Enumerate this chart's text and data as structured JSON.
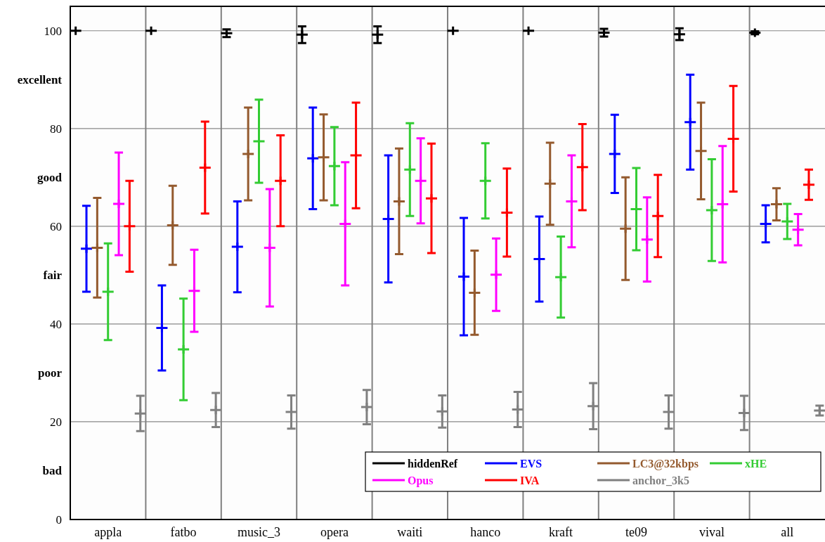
{
  "chart_data": {
    "type": "scatter",
    "categories": [
      null,
      null,
      null,
      "appla",
      null,
      null,
      null,
      null,
      null,
      null,
      "fatbo",
      null,
      null,
      null,
      null,
      null,
      null,
      "music_3",
      null,
      null,
      null,
      null,
      null,
      null,
      "opera",
      null,
      null,
      null,
      null,
      null,
      null,
      "waiti",
      null,
      null,
      null,
      null,
      null,
      null,
      "hanco",
      null,
      null,
      null,
      null,
      null,
      null,
      "kraft",
      null,
      null,
      null,
      null,
      null,
      null,
      "te09",
      null,
      null,
      null,
      null,
      null,
      null,
      "vival",
      null,
      null,
      null,
      null,
      null,
      null,
      "all",
      null,
      null,
      null
    ],
    "ylim": [
      0,
      105
    ],
    "yticks": [
      0,
      {
        "value": 10,
        "label": "bad"
      },
      20,
      {
        "value": 30,
        "label": "poor"
      },
      40,
      {
        "value": 50,
        "label": "fair"
      },
      60,
      {
        "value": 70,
        "label": "good"
      },
      80,
      {
        "value": 90,
        "label": "excellent"
      },
      100
    ],
    "grid": true,
    "legend": "bottom right",
    "marker": "cross",
    "series": [
      {
        "name": "hiddenRef",
        "color": "#000000",
        "values": [
          100,
          null,
          null,
          null,
          null,
          null,
          null,
          100,
          null,
          null,
          null,
          null,
          null,
          null,
          99.5,
          null,
          null,
          null,
          null,
          null,
          null,
          99.2,
          null,
          null,
          null,
          null,
          null,
          null,
          99.2,
          null,
          null,
          null,
          null,
          null,
          null,
          100,
          null,
          null,
          null,
          null,
          null,
          null,
          100,
          null,
          null,
          null,
          null,
          null,
          null,
          99.6,
          null,
          null,
          null,
          null,
          null,
          null,
          99.3,
          null,
          null,
          null,
          null,
          null,
          null,
          99.6,
          null,
          null,
          null,
          null,
          null,
          null
        ],
        "errors": [
          0,
          null,
          null,
          null,
          null,
          null,
          null,
          0,
          null,
          null,
          null,
          null,
          null,
          null,
          0.8,
          null,
          null,
          null,
          null,
          null,
          null,
          1.7,
          null,
          null,
          null,
          null,
          null,
          null,
          1.7,
          null,
          null,
          null,
          null,
          null,
          null,
          0,
          null,
          null,
          null,
          null,
          null,
          null,
          0,
          null,
          null,
          null,
          null,
          null,
          null,
          0.8,
          null,
          null,
          null,
          null,
          null,
          null,
          1.2,
          null,
          null,
          null,
          null,
          null,
          null,
          0.3,
          null,
          null,
          null,
          null,
          null,
          null
        ]
      },
      {
        "name": "EVS",
        "color": "#0000ff",
        "values": [
          null,
          55.4,
          null,
          null,
          null,
          null,
          null,
          null,
          39.2,
          null,
          null,
          null,
          null,
          null,
          null,
          55.8,
          null,
          null,
          null,
          null,
          null,
          null,
          73.9,
          null,
          null,
          null,
          null,
          null,
          null,
          61.5,
          null,
          null,
          null,
          null,
          null,
          null,
          49.7,
          null,
          null,
          null,
          null,
          null,
          null,
          53.3,
          null,
          null,
          null,
          null,
          null,
          null,
          74.8,
          null,
          null,
          null,
          null,
          null,
          null,
          81.3,
          null,
          null,
          null,
          null,
          null,
          null,
          60.5,
          null,
          null,
          null,
          null,
          null
        ],
        "errors": [
          null,
          8.8,
          null,
          null,
          null,
          null,
          null,
          null,
          8.7,
          null,
          null,
          null,
          null,
          null,
          null,
          9.3,
          null,
          null,
          null,
          null,
          null,
          null,
          10.4,
          null,
          null,
          null,
          null,
          null,
          null,
          13.0,
          null,
          null,
          null,
          null,
          null,
          null,
          12.0,
          null,
          null,
          null,
          null,
          null,
          null,
          8.7,
          null,
          null,
          null,
          null,
          null,
          null,
          8.0,
          null,
          null,
          null,
          null,
          null,
          null,
          9.7,
          null,
          null,
          null,
          null,
          null,
          null,
          3.8,
          null,
          null,
          null,
          null,
          null
        ]
      },
      {
        "name": "LC3@32kbps",
        "color": "#945a2e",
        "values": [
          null,
          null,
          55.6,
          null,
          null,
          null,
          null,
          null,
          null,
          60.2,
          null,
          null,
          null,
          null,
          null,
          null,
          74.8,
          null,
          null,
          null,
          null,
          null,
          null,
          74.1,
          null,
          null,
          null,
          null,
          null,
          null,
          65.1,
          null,
          null,
          null,
          null,
          null,
          null,
          46.4,
          null,
          null,
          null,
          null,
          null,
          null,
          68.7,
          null,
          null,
          null,
          null,
          null,
          null,
          59.5,
          null,
          null,
          null,
          null,
          null,
          null,
          75.4,
          null,
          null,
          null,
          null,
          null,
          null,
          64.5,
          null,
          null,
          null,
          null
        ],
        "errors": [
          null,
          null,
          10.2,
          null,
          null,
          null,
          null,
          null,
          null,
          8.1,
          null,
          null,
          null,
          null,
          null,
          null,
          9.5,
          null,
          null,
          null,
          null,
          null,
          null,
          8.8,
          null,
          null,
          null,
          null,
          null,
          null,
          10.8,
          null,
          null,
          null,
          null,
          null,
          null,
          8.6,
          null,
          null,
          null,
          null,
          null,
          null,
          8.4,
          null,
          null,
          null,
          null,
          null,
          null,
          10.5,
          null,
          null,
          null,
          null,
          null,
          null,
          9.9,
          null,
          null,
          null,
          null,
          null,
          null,
          3.3,
          null,
          null,
          null,
          null
        ]
      },
      {
        "name": "xHE",
        "color": "#33cc33",
        "values": [
          null,
          null,
          null,
          46.6,
          null,
          null,
          null,
          null,
          null,
          null,
          34.8,
          null,
          null,
          null,
          null,
          null,
          null,
          77.4,
          null,
          null,
          null,
          null,
          null,
          null,
          72.3,
          null,
          null,
          null,
          null,
          null,
          null,
          71.6,
          null,
          null,
          null,
          null,
          null,
          null,
          69.3,
          null,
          null,
          null,
          null,
          null,
          null,
          49.6,
          null,
          null,
          null,
          null,
          null,
          null,
          63.5,
          null,
          null,
          null,
          null,
          null,
          null,
          63.3,
          null,
          null,
          null,
          null,
          null,
          null,
          61.0,
          null,
          null,
          null
        ],
        "errors": [
          null,
          null,
          null,
          9.9,
          null,
          null,
          null,
          null,
          null,
          null,
          10.4,
          null,
          null,
          null,
          null,
          null,
          null,
          8.5,
          null,
          null,
          null,
          null,
          null,
          null,
          8.0,
          null,
          null,
          null,
          null,
          null,
          null,
          9.5,
          null,
          null,
          null,
          null,
          null,
          null,
          7.7,
          null,
          null,
          null,
          null,
          null,
          null,
          8.3,
          null,
          null,
          null,
          null,
          null,
          null,
          8.4,
          null,
          null,
          null,
          null,
          null,
          null,
          10.4,
          null,
          null,
          null,
          null,
          null,
          null,
          3.6,
          null,
          null,
          null
        ]
      },
      {
        "name": "Opus",
        "color": "#ff00ff",
        "values": [
          null,
          null,
          null,
          null,
          64.6,
          null,
          null,
          null,
          null,
          null,
          null,
          46.8,
          null,
          null,
          null,
          null,
          null,
          null,
          55.6,
          null,
          null,
          null,
          null,
          null,
          null,
          60.5,
          null,
          null,
          null,
          null,
          null,
          null,
          69.3,
          null,
          null,
          null,
          null,
          null,
          null,
          50.1,
          null,
          null,
          null,
          null,
          null,
          null,
          65.1,
          null,
          null,
          null,
          null,
          null,
          null,
          57.3,
          null,
          null,
          null,
          null,
          null,
          null,
          64.5,
          null,
          null,
          null,
          null,
          null,
          null,
          59.3,
          null,
          null
        ],
        "errors": [
          null,
          null,
          null,
          null,
          10.5,
          null,
          null,
          null,
          null,
          null,
          null,
          8.4,
          null,
          null,
          null,
          null,
          null,
          null,
          12.0,
          null,
          null,
          null,
          null,
          null,
          null,
          12.6,
          null,
          null,
          null,
          null,
          null,
          null,
          8.7,
          null,
          null,
          null,
          null,
          null,
          null,
          7.4,
          null,
          null,
          null,
          null,
          null,
          null,
          9.4,
          null,
          null,
          null,
          null,
          null,
          null,
          8.6,
          null,
          null,
          null,
          null,
          null,
          null,
          11.9,
          null,
          null,
          null,
          null,
          null,
          null,
          3.2,
          null,
          null
        ]
      },
      {
        "name": "IVA",
        "color": "#ff0000",
        "values": [
          null,
          null,
          null,
          null,
          null,
          60.0,
          null,
          null,
          null,
          null,
          null,
          null,
          72.0,
          null,
          null,
          null,
          null,
          null,
          null,
          69.3,
          null,
          null,
          null,
          null,
          null,
          null,
          74.5,
          null,
          null,
          null,
          null,
          null,
          null,
          65.7,
          null,
          null,
          null,
          null,
          null,
          null,
          62.8,
          null,
          null,
          null,
          null,
          null,
          null,
          72.1,
          null,
          null,
          null,
          null,
          null,
          null,
          62.1,
          null,
          null,
          null,
          null,
          null,
          null,
          77.9,
          null,
          null,
          null,
          null,
          null,
          null,
          68.5,
          null
        ],
        "errors": [
          null,
          null,
          null,
          null,
          null,
          9.3,
          null,
          null,
          null,
          null,
          null,
          null,
          9.4,
          null,
          null,
          null,
          null,
          null,
          null,
          9.3,
          null,
          null,
          null,
          null,
          null,
          null,
          10.8,
          null,
          null,
          null,
          null,
          null,
          null,
          11.2,
          null,
          null,
          null,
          null,
          null,
          null,
          9.0,
          null,
          null,
          null,
          null,
          null,
          null,
          8.8,
          null,
          null,
          null,
          null,
          null,
          null,
          8.4,
          null,
          null,
          null,
          null,
          null,
          null,
          10.8,
          null,
          null,
          null,
          null,
          null,
          null,
          3.1,
          null
        ]
      },
      {
        "name": "anchor_3k5",
        "color": "#808080",
        "values": [
          null,
          null,
          null,
          null,
          null,
          null,
          21.7,
          null,
          null,
          null,
          null,
          null,
          null,
          22.4,
          null,
          null,
          null,
          null,
          null,
          null,
          22.0,
          null,
          null,
          null,
          null,
          null,
          null,
          23.0,
          null,
          null,
          null,
          null,
          null,
          null,
          22.1,
          null,
          null,
          null,
          null,
          null,
          null,
          22.5,
          null,
          null,
          null,
          null,
          null,
          null,
          23.2,
          null,
          null,
          null,
          null,
          null,
          null,
          22.0,
          null,
          null,
          null,
          null,
          null,
          null,
          21.8,
          null,
          null,
          null,
          null,
          null,
          null,
          22.3
        ],
        "errors": [
          null,
          null,
          null,
          null,
          null,
          null,
          3.6,
          null,
          null,
          null,
          null,
          null,
          null,
          3.5,
          null,
          null,
          null,
          null,
          null,
          null,
          3.4,
          null,
          null,
          null,
          null,
          null,
          null,
          3.5,
          null,
          null,
          null,
          null,
          null,
          null,
          3.3,
          null,
          null,
          null,
          null,
          null,
          null,
          3.6,
          null,
          null,
          null,
          null,
          null,
          null,
          4.7,
          null,
          null,
          null,
          null,
          null,
          null,
          3.4,
          null,
          null,
          null,
          null,
          null,
          null,
          3.5,
          null,
          null,
          null,
          null,
          null,
          null,
          1.0
        ]
      }
    ]
  }
}
